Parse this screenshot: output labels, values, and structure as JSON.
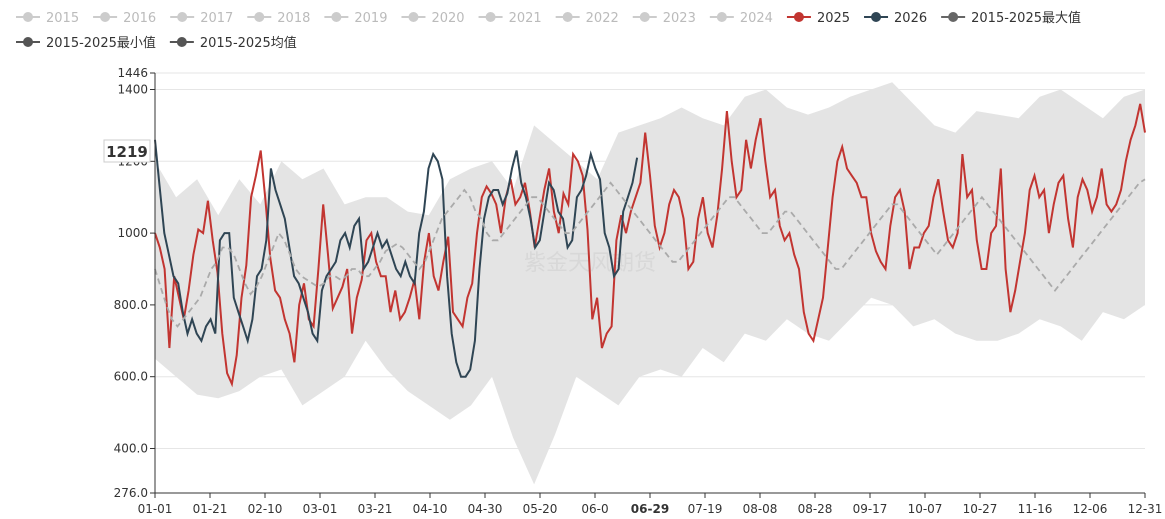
{
  "chart_data": {
    "type": "line",
    "legend": [
      {
        "name": "2015",
        "active": false,
        "color": "#cccccc"
      },
      {
        "name": "2016",
        "active": false,
        "color": "#cccccc"
      },
      {
        "name": "2017",
        "active": false,
        "color": "#cccccc"
      },
      {
        "name": "2018",
        "active": false,
        "color": "#cccccc"
      },
      {
        "name": "2019",
        "active": false,
        "color": "#cccccc"
      },
      {
        "name": "2020",
        "active": false,
        "color": "#cccccc"
      },
      {
        "name": "2021",
        "active": false,
        "color": "#cccccc"
      },
      {
        "name": "2022",
        "active": false,
        "color": "#cccccc"
      },
      {
        "name": "2023",
        "active": false,
        "color": "#cccccc"
      },
      {
        "name": "2024",
        "active": false,
        "color": "#cccccc"
      },
      {
        "name": "2025",
        "active": true,
        "color": "#c23531"
      },
      {
        "name": "2026",
        "active": true,
        "color": "#2f4554"
      },
      {
        "name": "2015-2025最大值",
        "active": true,
        "color": "#666666"
      },
      {
        "name": "2015-2025最小值",
        "active": true,
        "color": "#555555"
      },
      {
        "name": "2015-2025均值",
        "active": true,
        "color": "#555555"
      }
    ],
    "x_ticks": [
      "01-01",
      "01-21",
      "02-10",
      "03-01",
      "03-21",
      "04-10",
      "04-30",
      "05-20",
      "06-0",
      "06-29",
      "07-19",
      "08-08",
      "08-28",
      "09-17",
      "10-07",
      "10-27",
      "11-16",
      "12-06",
      "12-31"
    ],
    "x_highlight": "06-29",
    "y_ticks": [
      "276.0",
      "400.0",
      "600.0",
      "800.0",
      "1000",
      "1200",
      "1400",
      "1446"
    ],
    "ylim": [
      276,
      1446
    ],
    "y_pointer": "1219",
    "watermark": "紫金天风期货",
    "band_max": [
      1200,
      1100,
      1150,
      1050,
      1150,
      1080,
      1200,
      1150,
      1180,
      1080,
      1100,
      1100,
      1060,
      1050,
      1150,
      1180,
      1200,
      1120,
      1300,
      1250,
      1200,
      1150,
      1280,
      1300,
      1320,
      1350,
      1320,
      1300,
      1380,
      1400,
      1350,
      1330,
      1350,
      1380,
      1400,
      1420,
      1360,
      1300,
      1280,
      1340,
      1330,
      1320,
      1380,
      1400,
      1360,
      1320,
      1380,
      1400
    ],
    "band_min": [
      650,
      600,
      550,
      540,
      560,
      600,
      620,
      520,
      560,
      600,
      700,
      620,
      560,
      520,
      480,
      520,
      600,
      430,
      300,
      440,
      600,
      560,
      520,
      600,
      620,
      600,
      680,
      640,
      720,
      700,
      760,
      720,
      700,
      760,
      820,
      800,
      740,
      760,
      720,
      700,
      700,
      720,
      760,
      740,
      700,
      780,
      760,
      800
    ],
    "series": [
      {
        "name": "2025",
        "color": "#c23531",
        "values": [
          1000,
          960,
          900,
          680,
          880,
          820,
          760,
          840,
          940,
          1010,
          1000,
          1090,
          980,
          890,
          720,
          610,
          580,
          660,
          820,
          910,
          1100,
          1160,
          1230,
          1090,
          930,
          840,
          820,
          760,
          720,
          640,
          800,
          860,
          760,
          740,
          900,
          1080,
          940,
          790,
          820,
          850,
          900,
          720,
          820,
          870,
          980,
          1000,
          920,
          880,
          880,
          780,
          840,
          760,
          780,
          820,
          870,
          760,
          920,
          1000,
          880,
          840,
          920,
          990,
          780,
          760,
          740,
          820,
          860,
          1000,
          1100,
          1130,
          1110,
          1080,
          1000,
          1100,
          1150,
          1080,
          1100,
          1140,
          1060,
          960,
          1040,
          1120,
          1180,
          1060,
          1000,
          1110,
          1080,
          1220,
          1200,
          1160,
          1010,
          760,
          820,
          680,
          720,
          740,
          980,
          1050,
          1000,
          1060,
          1100,
          1140,
          1280,
          1160,
          1020,
          960,
          1000,
          1080,
          1120,
          1100,
          1040,
          900,
          920,
          1040,
          1100,
          1000,
          960,
          1050,
          1180,
          1340,
          1200,
          1100,
          1120,
          1260,
          1180,
          1260,
          1320,
          1200,
          1100,
          1120,
          1020,
          980,
          1000,
          940,
          900,
          780,
          720,
          700,
          760,
          820,
          960,
          1100,
          1200,
          1240,
          1180,
          1160,
          1140,
          1100,
          1100,
          1000,
          950,
          920,
          900,
          1020,
          1100,
          1120,
          1060,
          900,
          960,
          960,
          1000,
          1020,
          1100,
          1150,
          1060,
          980,
          960,
          1000,
          1220,
          1100,
          1120,
          980,
          900,
          900,
          1000,
          1020,
          1180,
          900,
          780,
          840,
          920,
          1000,
          1120,
          1160,
          1100,
          1120,
          1000,
          1080,
          1140,
          1160,
          1040,
          960,
          1100,
          1150,
          1120,
          1060,
          1100,
          1180,
          1080,
          1060,
          1080,
          1120,
          1200,
          1260,
          1300,
          1360,
          1280
        ]
      },
      {
        "name": "2026",
        "color": "#2f4554",
        "values": [
          1260,
          1130,
          1000,
          940,
          880,
          860,
          780,
          720,
          760,
          720,
          700,
          740,
          760,
          720,
          980,
          1000,
          1000,
          820,
          780,
          740,
          700,
          760,
          880,
          900,
          980,
          1180,
          1120,
          1080,
          1040,
          960,
          880,
          860,
          820,
          780,
          720,
          700,
          840,
          880,
          900,
          920,
          980,
          1000,
          960,
          1020,
          1040,
          900,
          920,
          960,
          1000,
          960,
          980,
          940,
          900,
          880,
          920,
          880,
          860,
          1000,
          1060,
          1180,
          1220,
          1200,
          1150,
          880,
          720,
          640,
          600,
          600,
          620,
          700,
          900,
          1040,
          1100,
          1120,
          1120,
          1080,
          1110,
          1180,
          1230,
          1140,
          1100,
          1040,
          960,
          980,
          1060,
          1140,
          1120,
          1060,
          1040,
          960,
          980,
          1100,
          1120,
          1160,
          1220,
          1180,
          1150,
          1000,
          960,
          880,
          900,
          1060,
          1100,
          1140,
          1210
        ]
      },
      {
        "name": "2015-2025均值",
        "color": "#aaaaaa",
        "dashed": true,
        "values": [
          900,
          850,
          800,
          760,
          740,
          760,
          780,
          800,
          820,
          860,
          900,
          920,
          960,
          960,
          940,
          900,
          860,
          830,
          850,
          880,
          920,
          960,
          1000,
          980,
          940,
          900,
          880,
          870,
          860,
          850,
          860,
          880,
          880,
          870,
          880,
          900,
          900,
          880,
          880,
          900,
          920,
          950,
          960,
          970,
          960,
          940,
          920,
          900,
          920,
          960,
          1000,
          1040,
          1060,
          1080,
          1100,
          1120,
          1100,
          1060,
          1040,
          1000,
          980,
          980,
          1000,
          1020,
          1040,
          1060,
          1080,
          1100,
          1100,
          1080,
          1060,
          1040,
          1020,
          1000,
          1000,
          1020,
          1040,
          1060,
          1080,
          1100,
          1120,
          1140,
          1120,
          1100,
          1080,
          1060,
          1040,
          1020,
          1000,
          980,
          960,
          940,
          920,
          920,
          940,
          960,
          980,
          1000,
          1020,
          1040,
          1060,
          1080,
          1100,
          1100,
          1080,
          1060,
          1040,
          1020,
          1000,
          1000,
          1020,
          1040,
          1060,
          1060,
          1040,
          1020,
          1000,
          980,
          960,
          940,
          920,
          900,
          900,
          920,
          940,
          960,
          980,
          1000,
          1020,
          1040,
          1060,
          1080,
          1080,
          1060,
          1040,
          1020,
          1000,
          980,
          960,
          940,
          960,
          980,
          1000,
          1020,
          1040,
          1060,
          1080,
          1100,
          1080,
          1060,
          1040,
          1020,
          1000,
          980,
          960,
          940,
          920,
          900,
          880,
          860,
          840,
          860,
          880,
          900,
          920,
          940,
          960,
          980,
          1000,
          1020,
          1040,
          1060,
          1080,
          1100,
          1120,
          1140,
          1150
        ]
      }
    ]
  }
}
